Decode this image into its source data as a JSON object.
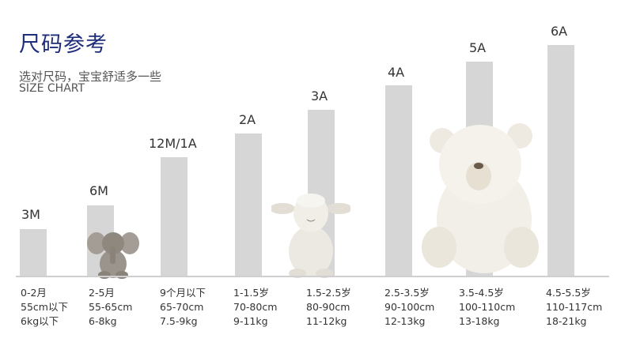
{
  "header": {
    "title": "尺码参考",
    "subtitle": "选对尺码，宝宝舒适多一些",
    "subtitle_en": "SIZE CHART"
  },
  "sizes": [
    {
      "label": "3M",
      "age": "0-2月",
      "height": "55cm以下",
      "weight": "6kg以下"
    },
    {
      "label": "6M",
      "age": "2-5月",
      "height": "55-65cm",
      "weight": "6-8kg"
    },
    {
      "label": "12M/1A",
      "age": "9个月以下",
      "height": "65-70cm",
      "weight": "7.5-9kg"
    },
    {
      "label": "2A",
      "age": "1-1.5岁",
      "height": "70-80cm",
      "weight": "9-11kg"
    },
    {
      "label": "3A",
      "age": "1.5-2.5岁",
      "height": "80-90cm",
      "weight": "11-12kg"
    },
    {
      "label": "4A",
      "age": "2.5-3.5岁",
      "height": "90-100cm",
      "weight": "12-13kg"
    },
    {
      "label": "5A",
      "age": "3.5-4.5岁",
      "height": "100-110cm",
      "weight": "13-18kg"
    },
    {
      "label": "6A",
      "age": "4.5-5.5岁",
      "height": "110-117cm",
      "weight": "18-21kg"
    }
  ],
  "colors": {
    "title": "#1f2d7a",
    "bar": "#d6d6d6"
  }
}
